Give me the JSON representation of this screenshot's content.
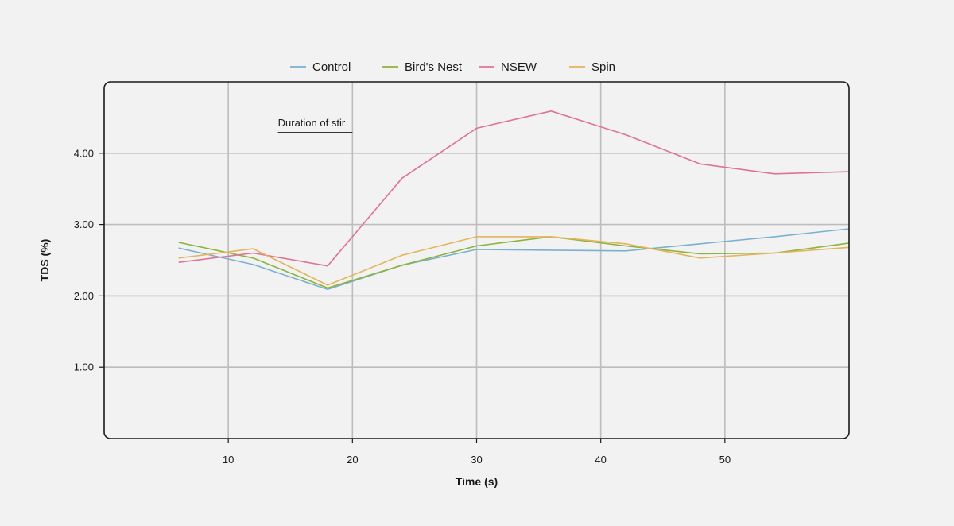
{
  "chart_data": {
    "type": "line",
    "title": "",
    "xlabel": "Time (s)",
    "ylabel": "TDS (%)",
    "xlim": [
      0,
      60
    ],
    "ylim": [
      0,
      5
    ],
    "xticks": [
      10,
      20,
      30,
      40,
      50
    ],
    "xtick_labels": [
      "10",
      "20",
      "30",
      "40",
      "50"
    ],
    "yticks": [
      1,
      2,
      3,
      4
    ],
    "ytick_labels": [
      "1.00",
      "2.00",
      "3.00",
      "4.00"
    ],
    "grid": true,
    "legend_position": "top-center",
    "annotation": {
      "text": "Duration of stir",
      "x_start": 14,
      "x_end": 20
    },
    "series": [
      {
        "name": "Control",
        "color": "#7ab0d0",
        "x": [
          6,
          12,
          18,
          24,
          30,
          36,
          42,
          48,
          54,
          60
        ],
        "y": [
          2.67,
          2.44,
          2.09,
          2.43,
          2.65,
          2.64,
          2.63,
          2.73,
          2.83,
          2.94
        ]
      },
      {
        "name": "Bird's Nest",
        "color": "#8db23d",
        "x": [
          6,
          12,
          18,
          24,
          30,
          36,
          42,
          48,
          54,
          60
        ],
        "y": [
          2.75,
          2.53,
          2.11,
          2.43,
          2.7,
          2.83,
          2.7,
          2.59,
          2.6,
          2.74
        ]
      },
      {
        "name": "NSEW",
        "color": "#df7395",
        "x": [
          6,
          12,
          18,
          24,
          30,
          36,
          42,
          48,
          54,
          60
        ],
        "y": [
          2.47,
          2.6,
          2.42,
          3.65,
          4.35,
          4.59,
          4.26,
          3.85,
          3.71,
          3.74
        ]
      },
      {
        "name": "Spin",
        "color": "#e3b55c",
        "x": [
          6,
          12,
          18,
          24,
          30,
          36,
          42,
          48,
          54,
          60
        ],
        "y": [
          2.53,
          2.66,
          2.15,
          2.57,
          2.83,
          2.83,
          2.73,
          2.53,
          2.6,
          2.68
        ]
      }
    ]
  }
}
